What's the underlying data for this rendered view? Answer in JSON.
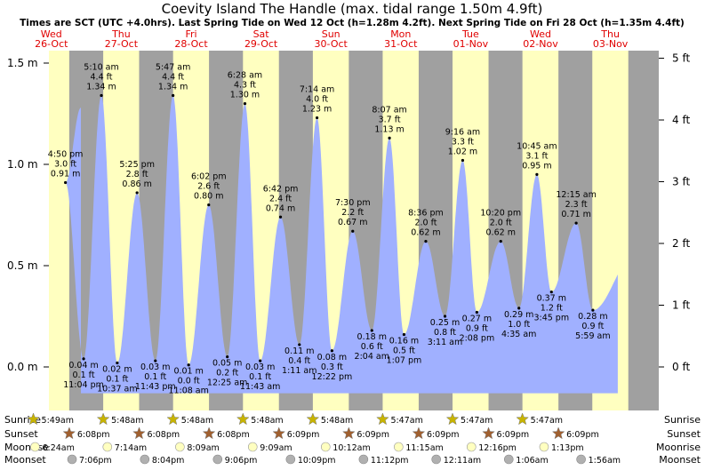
{
  "header": {
    "title": "Coevity Island The Handle (max. tidal range 1.50m 4.9ft)",
    "subtitle": "Times are SCT (UTC +4.0hrs). Last Spring Tide on Wed 12 Oct (h=1.28m 4.2ft). Next Spring Tide on Fri 28 Oct (h=1.35m 4.4ft)"
  },
  "colors": {
    "night": "#a0a0a0",
    "day": "#ffffc0",
    "tide": "#a0b0ff",
    "day_label": "#e00000",
    "sun_star": "#c8b400",
    "sunset_star": "#a06030",
    "moonrise": "#ffffc0",
    "moonset": "#b0b0b0"
  },
  "days": [
    {
      "name": "Wed",
      "date": "26-Oct"
    },
    {
      "name": "Thu",
      "date": "27-Oct"
    },
    {
      "name": "Fri",
      "date": "28-Oct"
    },
    {
      "name": "Sat",
      "date": "29-Oct"
    },
    {
      "name": "Sun",
      "date": "30-Oct"
    },
    {
      "name": "Mon",
      "date": "31-Oct"
    },
    {
      "name": "Tue",
      "date": "01-Nov"
    },
    {
      "name": "Wed",
      "date": "02-Nov"
    },
    {
      "name": "Thu",
      "date": "03-Nov"
    }
  ],
  "chart_data": {
    "type": "area",
    "title": "Coevity Island The Handle (max. tidal range 1.50m 4.9ft)",
    "ylabel_left_unit": "m",
    "ylabel_right_unit": "ft",
    "ylim_m": [
      -0.18,
      1.6
    ],
    "yticks_m": [
      "0.0 m",
      "0.5 m",
      "1.0 m",
      "1.5 m"
    ],
    "yticks_ft": [
      "0 ft",
      "1 ft",
      "2 ft",
      "3 ft",
      "4 ft",
      "5 ft"
    ],
    "grid": false,
    "extremes": [
      {
        "day": 0,
        "time": "4:50 pm",
        "ft": "3.0 ft",
        "m": 0.91,
        "type": "high"
      },
      {
        "day": 0,
        "time": "11:04 pm",
        "ft": "0.1 ft",
        "m": 0.04,
        "type": "low"
      },
      {
        "day": 1,
        "time": "5:10 am",
        "ft": "4.4 ft",
        "m": 1.34,
        "type": "high"
      },
      {
        "day": 1,
        "time": "10:37 am",
        "ft": "0.1 ft",
        "m": 0.02,
        "type": "low"
      },
      {
        "day": 1,
        "time": "5:25 pm",
        "ft": "2.8 ft",
        "m": 0.86,
        "type": "high"
      },
      {
        "day": 1,
        "time": "11:43 pm",
        "ft": "0.1 ft",
        "m": 0.03,
        "type": "low"
      },
      {
        "day": 2,
        "time": "5:47 am",
        "ft": "4.4 ft",
        "m": 1.34,
        "type": "high"
      },
      {
        "day": 2,
        "time": "11:08 am",
        "ft": "0.0 ft",
        "m": 0.01,
        "type": "low"
      },
      {
        "day": 2,
        "time": "6:02 pm",
        "ft": "2.6 ft",
        "m": 0.8,
        "type": "high"
      },
      {
        "day": 3,
        "time": "12:25 am",
        "ft": "0.2 ft",
        "m": 0.05,
        "type": "low"
      },
      {
        "day": 3,
        "time": "6:28 am",
        "ft": "4.3 ft",
        "m": 1.3,
        "type": "high"
      },
      {
        "day": 3,
        "time": "11:43 am",
        "ft": "0.1 ft",
        "m": 0.03,
        "type": "low"
      },
      {
        "day": 3,
        "time": "6:42 pm",
        "ft": "2.4 ft",
        "m": 0.74,
        "type": "high"
      },
      {
        "day": 4,
        "time": "1:11 am",
        "ft": "0.4 ft",
        "m": 0.11,
        "type": "low"
      },
      {
        "day": 4,
        "time": "7:14 am",
        "ft": "4.0 ft",
        "m": 1.23,
        "type": "high"
      },
      {
        "day": 4,
        "time": "12:22 pm",
        "ft": "0.3 ft",
        "m": 0.08,
        "type": "low"
      },
      {
        "day": 4,
        "time": "7:30 pm",
        "ft": "2.2 ft",
        "m": 0.67,
        "type": "high"
      },
      {
        "day": 5,
        "time": "2:04 am",
        "ft": "0.6 ft",
        "m": 0.18,
        "type": "low"
      },
      {
        "day": 5,
        "time": "8:07 am",
        "ft": "3.7 ft",
        "m": 1.13,
        "type": "high"
      },
      {
        "day": 5,
        "time": "1:07 pm",
        "ft": "0.5 ft",
        "m": 0.16,
        "type": "low"
      },
      {
        "day": 5,
        "time": "8:36 pm",
        "ft": "2.0 ft",
        "m": 0.62,
        "type": "high"
      },
      {
        "day": 6,
        "time": "3:11 am",
        "ft": "0.8 ft",
        "m": 0.25,
        "type": "low"
      },
      {
        "day": 6,
        "time": "9:16 am",
        "ft": "3.3 ft",
        "m": 1.02,
        "type": "high"
      },
      {
        "day": 6,
        "time": "2:08 pm",
        "ft": "0.9 ft",
        "m": 0.27,
        "type": "low"
      },
      {
        "day": 6,
        "time": "10:20 pm",
        "ft": "2.0 ft",
        "m": 0.62,
        "type": "high"
      },
      {
        "day": 7,
        "time": "4:35 am",
        "ft": "1.0 ft",
        "m": 0.29,
        "type": "low"
      },
      {
        "day": 7,
        "time": "10:45 am",
        "ft": "3.1 ft",
        "m": 0.95,
        "type": "high"
      },
      {
        "day": 7,
        "time": "3:45 pm",
        "ft": "1.2 ft",
        "m": 0.37,
        "type": "low"
      },
      {
        "day": 8,
        "time": "12:15 am",
        "ft": "2.3 ft",
        "m": 0.71,
        "type": "high"
      },
      {
        "day": 8,
        "time": "5:59 am",
        "ft": "0.9 ft",
        "m": 0.28,
        "type": "low"
      }
    ]
  },
  "events": {
    "row_labels": {
      "sunrise": "Sunrise",
      "sunset": "Sunset",
      "moonrise": "Moonrise",
      "moonset": "Moonset"
    },
    "sunrise": [
      "5:49am",
      "5:48am",
      "5:48am",
      "5:48am",
      "5:48am",
      "5:47am",
      "5:47am",
      "5:47am"
    ],
    "sunset": [
      "6:08pm",
      "6:08pm",
      "6:08pm",
      "6:09pm",
      "6:09pm",
      "6:09pm",
      "6:09pm",
      "6:09pm"
    ],
    "moonrise": [
      "6:24am",
      "7:14am",
      "8:09am",
      "9:09am",
      "10:12am",
      "11:15am",
      "12:16pm",
      "1:13pm"
    ],
    "moonset": [
      "7:06pm",
      "8:04pm",
      "9:06pm",
      "10:09pm",
      "11:12pm",
      "12:11am",
      "1:06am",
      "1:56am"
    ]
  }
}
